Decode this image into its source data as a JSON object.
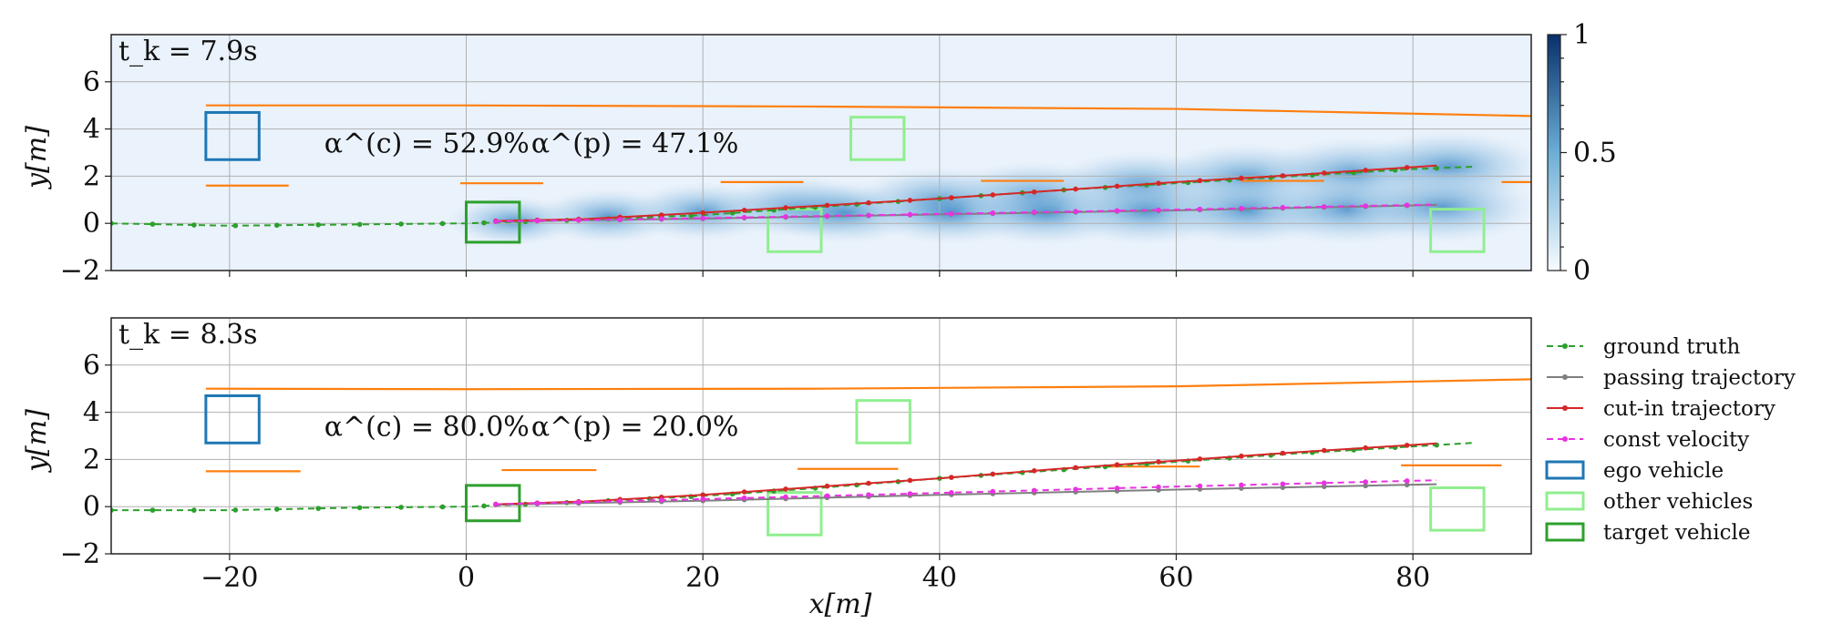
{
  "chart_data": {
    "type": "line",
    "xlabel": "x[m]",
    "ylabel": "y[m]",
    "xlim": [
      -30,
      90
    ],
    "ylim": [
      -2,
      8
    ],
    "xticks": [
      -20,
      0,
      20,
      40,
      60,
      80
    ],
    "yticks": [
      -2,
      0,
      2,
      4,
      6
    ],
    "grid": true,
    "legend_position": "right of lower panel",
    "colorbar": {
      "ticks": [
        0,
        0.5,
        1
      ],
      "range": [
        0,
        1
      ],
      "colormap": "Blues"
    },
    "legend": [
      {
        "label": "ground truth",
        "color": "#2ca02c",
        "style": "dashed-dot"
      },
      {
        "label": "passing trajectory",
        "color": "#7f7f7f",
        "style": "solid-dot"
      },
      {
        "label": "cut-in trajectory",
        "color": "#d62728",
        "style": "solid-dot"
      },
      {
        "label": "const velocity",
        "color": "#e833e0",
        "style": "dashed-dot"
      },
      {
        "label": "ego vehicle",
        "color": "#1f77b4",
        "style": "box"
      },
      {
        "label": "other vehicles",
        "color": "#90ee90",
        "style": "box"
      },
      {
        "label": "target vehicle",
        "color": "#2ca02c",
        "style": "box"
      }
    ],
    "panels": [
      {
        "time_label": "t_k = 7.9s",
        "alpha_c": "α^(c) = 52.9%",
        "alpha_p": "α^(p) = 47.1%",
        "lane_upper": {
          "x": [
            -22,
            0,
            30,
            60,
            90
          ],
          "y": [
            5.0,
            5.0,
            4.95,
            4.85,
            4.55
          ]
        },
        "lane_dashes": [
          {
            "x": [
              -22,
              -15
            ],
            "y": 1.6
          },
          {
            "x": [
              -0.5,
              6.5
            ],
            "y": 1.7
          },
          {
            "x": [
              21.5,
              28.5
            ],
            "y": 1.75
          },
          {
            "x": [
              43.5,
              50.5
            ],
            "y": 1.8
          },
          {
            "x": [
              65.5,
              72.5
            ],
            "y": 1.8
          },
          {
            "x": [
              87.5,
              92
            ],
            "y": 1.75
          }
        ],
        "ego_vehicle": {
          "x": [
            -22,
            -17.5
          ],
          "y": [
            2.7,
            4.7
          ]
        },
        "target_vehicle": {
          "x": [
            0,
            4.5
          ],
          "y": [
            -0.8,
            0.9
          ]
        },
        "other_vehicles": [
          {
            "x": [
              32.5,
              37
            ],
            "y": [
              2.7,
              4.5
            ]
          },
          {
            "x": [
              25.5,
              30
            ],
            "y": [
              -1.2,
              0.6
            ]
          },
          {
            "x": [
              81.5,
              86
            ],
            "y": [
              -1.2,
              0.6
            ]
          }
        ],
        "heat_blobs": [
          {
            "x": 4,
            "y": 0.1,
            "w": 0.35
          },
          {
            "x": 12,
            "y": 0.3,
            "w": 0.5
          },
          {
            "x": 20,
            "y": 0.5,
            "w": 0.6
          },
          {
            "x": 28,
            "y": 0.7,
            "w": 0.7
          },
          {
            "x": 40,
            "y": 1.0,
            "w": 0.8
          },
          {
            "x": 48,
            "y": 1.2,
            "w": 0.85
          },
          {
            "x": 57,
            "y": 1.6,
            "w": 0.9
          },
          {
            "x": 66,
            "y": 1.9,
            "w": 0.95
          },
          {
            "x": 75,
            "y": 2.1,
            "w": 1.0
          },
          {
            "x": 83,
            "y": 2.4,
            "w": 1.0
          },
          {
            "x": 32,
            "y": 0.45,
            "w": 0.7
          },
          {
            "x": 41,
            "y": 0.45,
            "w": 0.75
          },
          {
            "x": 49,
            "y": 0.45,
            "w": 0.8
          },
          {
            "x": 57.5,
            "y": 0.5,
            "w": 0.85
          },
          {
            "x": 66,
            "y": 0.55,
            "w": 0.9
          },
          {
            "x": 74.5,
            "y": 0.6,
            "w": 0.95
          },
          {
            "x": 82.5,
            "y": 0.7,
            "w": 1.0
          }
        ],
        "series": [
          {
            "name": "ground truth",
            "x_start": -30,
            "x_end": 85,
            "points": [
              [
                -30,
                0.0
              ],
              [
                -20,
                -0.1
              ],
              [
                -10,
                -0.05
              ],
              [
                0,
                0.0
              ],
              [
                10,
                0.15
              ],
              [
                20,
                0.35
              ],
              [
                30,
                0.7
              ],
              [
                40,
                1.05
              ],
              [
                50,
                1.4
              ],
              [
                60,
                1.7
              ],
              [
                70,
                2.0
              ],
              [
                80,
                2.3
              ],
              [
                85,
                2.4
              ]
            ]
          },
          {
            "name": "passing trajectory",
            "x_start": 2.5,
            "x_end": 82,
            "points": [
              [
                2.5,
                0.08
              ],
              [
                20,
                0.2
              ],
              [
                40,
                0.38
              ],
              [
                60,
                0.55
              ],
              [
                82,
                0.78
              ]
            ]
          },
          {
            "name": "cut-in trajectory",
            "x_start": 2.5,
            "x_end": 82,
            "points": [
              [
                2.5,
                0.1
              ],
              [
                10,
                0.18
              ],
              [
                20,
                0.45
              ],
              [
                30,
                0.75
              ],
              [
                40,
                1.05
              ],
              [
                50,
                1.4
              ],
              [
                60,
                1.75
              ],
              [
                70,
                2.05
              ],
              [
                82,
                2.45
              ]
            ]
          },
          {
            "name": "const velocity",
            "x_start": 2.5,
            "x_end": 82,
            "points": [
              [
                2.5,
                0.08
              ],
              [
                20,
                0.22
              ],
              [
                40,
                0.4
              ],
              [
                60,
                0.58
              ],
              [
                82,
                0.8
              ]
            ]
          }
        ]
      },
      {
        "time_label": "t_k = 8.3s",
        "alpha_c": "α^(c) = 80.0%",
        "alpha_p": "α^(p) = 20.0%",
        "lane_upper": {
          "x": [
            -22,
            0,
            30,
            60,
            90
          ],
          "y": [
            5.0,
            4.98,
            5.0,
            5.1,
            5.4
          ]
        },
        "lane_dashes": [
          {
            "x": [
              -22,
              -14
            ],
            "y": 1.5
          },
          {
            "x": [
              3,
              11
            ],
            "y": 1.55
          },
          {
            "x": [
              28,
              36.5
            ],
            "y": 1.6
          },
          {
            "x": [
              54,
              62
            ],
            "y": 1.7
          },
          {
            "x": [
              79,
              87.5
            ],
            "y": 1.75
          }
        ],
        "ego_vehicle": {
          "x": [
            -22,
            -17.5
          ],
          "y": [
            2.7,
            4.7
          ]
        },
        "target_vehicle": {
          "x": [
            0,
            4.5
          ],
          "y": [
            -0.6,
            0.9
          ]
        },
        "other_vehicles": [
          {
            "x": [
              33,
              37.5
            ],
            "y": [
              2.7,
              4.5
            ]
          },
          {
            "x": [
              25.5,
              30
            ],
            "y": [
              -1.2,
              0.6
            ]
          },
          {
            "x": [
              81.5,
              86
            ],
            "y": [
              -1.0,
              0.8
            ]
          }
        ],
        "heat_blobs": [],
        "series": [
          {
            "name": "ground truth",
            "x_start": -30,
            "x_end": 85,
            "points": [
              [
                -30,
                -0.15
              ],
              [
                -20,
                -0.15
              ],
              [
                -10,
                -0.05
              ],
              [
                0,
                0.0
              ],
              [
                10,
                0.2
              ],
              [
                20,
                0.45
              ],
              [
                30,
                0.8
              ],
              [
                40,
                1.2
              ],
              [
                50,
                1.55
              ],
              [
                60,
                1.9
              ],
              [
                70,
                2.25
              ],
              [
                80,
                2.55
              ],
              [
                85,
                2.7
              ]
            ]
          },
          {
            "name": "passing trajectory",
            "x_start": 2.5,
            "x_end": 82,
            "points": [
              [
                2.5,
                0.08
              ],
              [
                20,
                0.25
              ],
              [
                40,
                0.5
              ],
              [
                60,
                0.72
              ],
              [
                82,
                0.95
              ]
            ]
          },
          {
            "name": "cut-in trajectory",
            "x_start": 2.5,
            "x_end": 82,
            "points": [
              [
                2.5,
                0.1
              ],
              [
                10,
                0.22
              ],
              [
                20,
                0.5
              ],
              [
                30,
                0.85
              ],
              [
                40,
                1.2
              ],
              [
                50,
                1.6
              ],
              [
                60,
                1.95
              ],
              [
                70,
                2.3
              ],
              [
                82,
                2.68
              ]
            ]
          },
          {
            "name": "const velocity",
            "x_start": 2.5,
            "x_end": 82,
            "points": [
              [
                2.5,
                0.1
              ],
              [
                20,
                0.32
              ],
              [
                40,
                0.58
              ],
              [
                60,
                0.85
              ],
              [
                82,
                1.12
              ]
            ]
          }
        ]
      }
    ]
  },
  "colors": {
    "ground_truth": "#2ca02c",
    "passing": "#7f7f7f",
    "cutin": "#d62728",
    "const_velocity": "#e833e0",
    "ego": "#1f77b4",
    "other": "#90ee90",
    "target": "#2ca02c",
    "lane": "#ff7f0e",
    "heat_bg": "#eaf2fb"
  }
}
